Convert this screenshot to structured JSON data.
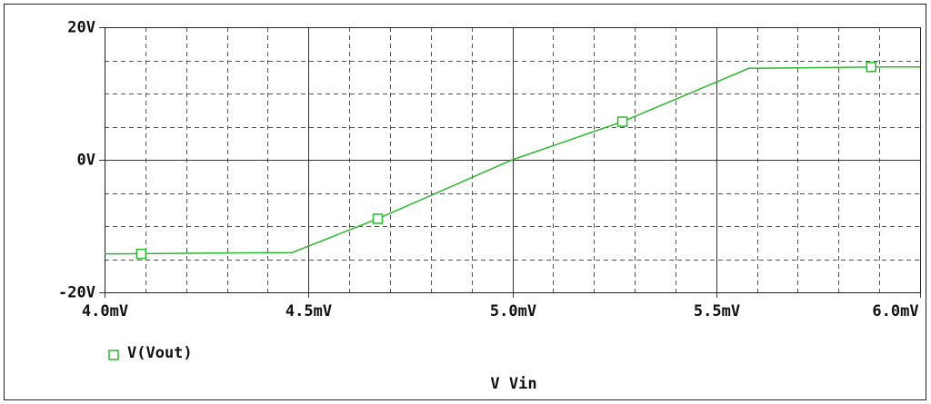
{
  "chart_data": {
    "type": "line",
    "xlabel": "V Vin",
    "x": [
      4.0,
      4.46,
      4.67,
      5.0,
      5.27,
      5.58,
      5.9,
      6.0
    ],
    "series": [
      {
        "name": "V(Vout)",
        "color": "#2fb52f",
        "values": [
          -14.2,
          -14.0,
          -8.9,
          0,
          5.75,
          13.8,
          14.0,
          14.0
        ],
        "markers": [
          {
            "x": 4.09,
            "y": -14.2
          },
          {
            "x": 4.67,
            "y": -8.9
          },
          {
            "x": 5.27,
            "y": 5.75
          },
          {
            "x": 5.88,
            "y": 14.0
          }
        ]
      }
    ],
    "xlim": [
      4.0,
      6.0
    ],
    "ylim": [
      -20,
      20
    ],
    "xticks": [
      {
        "value": 4.0,
        "label": "4.0mV"
      },
      {
        "value": 4.5,
        "label": "4.5mV"
      },
      {
        "value": 5.0,
        "label": "5.0mV"
      },
      {
        "value": 5.5,
        "label": "5.5mV"
      },
      {
        "value": 6.0,
        "label": "6.0mV"
      }
    ],
    "yticks": [
      {
        "value": -20,
        "label": "-20V"
      },
      {
        "value": 0,
        "label": "0V"
      },
      {
        "value": 20,
        "label": "20V"
      }
    ],
    "x_minor_grid": [
      4.1,
      4.2,
      4.3,
      4.4,
      4.6,
      4.7,
      4.8,
      4.9,
      5.1,
      5.2,
      5.3,
      5.4,
      5.6,
      5.7,
      5.8,
      5.9
    ],
    "y_minor_grid": [
      -15,
      -10,
      -5,
      5,
      10,
      15
    ],
    "grid": true
  }
}
